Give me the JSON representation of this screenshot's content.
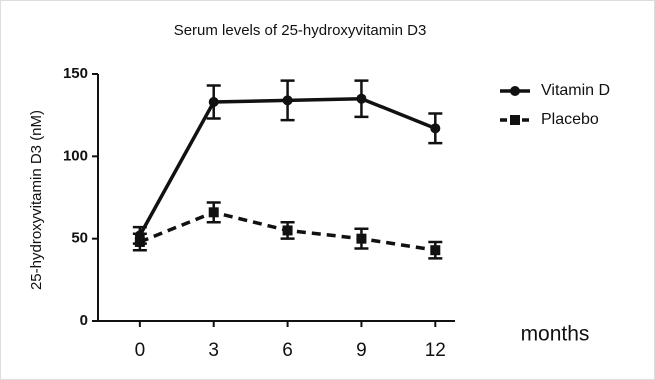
{
  "chart_data": {
    "type": "line",
    "title": "Serum levels of 25-hydroxyvitamin D3",
    "ylabel": "25-hydroxyvitamin D3 (nM)",
    "xlabel": "months",
    "x": [
      0,
      3,
      6,
      9,
      12
    ],
    "xlim": [
      -1.7,
      12.8
    ],
    "xticks": [
      0,
      3,
      6,
      9,
      12
    ],
    "ylim": [
      0,
      150
    ],
    "yticks": [
      0,
      50,
      100,
      150
    ],
    "series": [
      {
        "name": "Vitamin D",
        "color": "#111111",
        "marker": "circle",
        "dashed": false,
        "values": [
          52,
          133,
          134,
          135,
          117
        ],
        "errors": [
          5,
          10,
          12,
          11,
          9
        ]
      },
      {
        "name": "Placebo",
        "color": "#111111",
        "marker": "square",
        "dashed": true,
        "values": [
          48,
          66,
          55,
          50,
          43
        ],
        "errors": [
          5,
          6,
          5,
          6,
          5
        ]
      }
    ]
  }
}
